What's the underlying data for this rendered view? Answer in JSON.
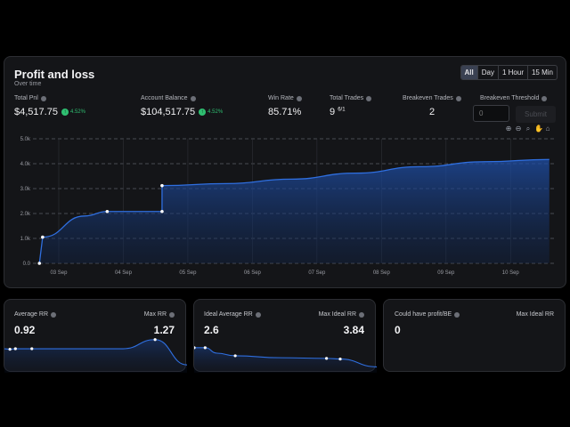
{
  "header": {
    "title": "Profit and loss",
    "subtitle": "Over time"
  },
  "range_buttons": [
    {
      "label": "All",
      "active": true
    },
    {
      "label": "Day",
      "active": false
    },
    {
      "label": "1 Hour",
      "active": false
    },
    {
      "label": "15 Min",
      "active": false
    }
  ],
  "stats": {
    "total_pnl": {
      "label": "Total Pnl",
      "value": "$4,517.75",
      "pct": "4.52%"
    },
    "account_balance": {
      "label": "Account Balance",
      "value": "$104,517.75",
      "pct": "4.52%"
    },
    "win_rate": {
      "label": "Win Rate",
      "value": "85.71%"
    },
    "total_trades": {
      "label": "Total Trades",
      "value": "9",
      "sup": "6/1"
    },
    "breakeven_trades": {
      "label": "Breakeven Trades",
      "value": "2"
    },
    "breakeven_threshold": {
      "label": "Breakeven Threshold",
      "placeholder": "0",
      "submit_label": "Submit"
    }
  },
  "toolbar_icons": [
    "zoom-in-icon",
    "zoom-out-icon",
    "magnify-icon",
    "pan-icon",
    "home-icon"
  ],
  "colors": {
    "accent": "#2f6fe0",
    "positive": "#2fbf71",
    "background": "#141518"
  },
  "chart_data": {
    "type": "area",
    "title": "",
    "xlabel": "",
    "ylabel": "",
    "ylim": [
      0,
      5000
    ],
    "y_ticks": [
      "0.0",
      "1.0k",
      "2.0k",
      "3.0k",
      "4.0k",
      "5.0k"
    ],
    "x_ticks": [
      "03 Sep",
      "04 Sep",
      "05 Sep",
      "06 Sep",
      "07 Sep",
      "08 Sep",
      "09 Sep",
      "10 Sep"
    ],
    "grid": true,
    "series": [
      {
        "x": [
          2.7,
          2.75,
          3.4,
          3.75,
          4.6,
          4.6,
          5.6,
          6.6,
          7.6,
          8.6,
          9.6,
          10.6
        ],
        "y": [
          0,
          1050,
          1900,
          2080,
          2080,
          3120,
          3200,
          3380,
          3620,
          3880,
          4080,
          4170
        ],
        "markers": [
          0,
          1,
          3,
          4,
          5
        ]
      }
    ]
  },
  "mini_cards": [
    {
      "left_label": "Average RR",
      "left_value": "0.92",
      "right_label": "Max RR",
      "right_value": "1.27",
      "chart_data": {
        "type": "line",
        "ylim": [
          0,
          1.5
        ],
        "values": [
          0.92,
          0.9,
          0.92,
          0.92,
          0.92,
          0.92,
          0.92,
          0.92,
          0.92,
          1.27,
          0.3
        ],
        "x": [
          0,
          0.06,
          0.12,
          0.3,
          0.5,
          0.65,
          0.8,
          0.92,
          1.3,
          1.65,
          2.0
        ],
        "markers": [
          1,
          2,
          3,
          9
        ]
      }
    },
    {
      "left_label": "Ideal Average RR",
      "left_value": "2.6",
      "right_label": "Max Ideal RR",
      "right_value": "3.84",
      "chart_data": {
        "type": "line",
        "ylim": [
          0,
          6
        ],
        "values": [
          3.84,
          3.84,
          3.0,
          2.6,
          2.3,
          2.2,
          2.1,
          0.9
        ],
        "x": [
          0,
          0.12,
          0.25,
          0.45,
          0.95,
          1.45,
          1.6,
          2.0
        ],
        "markers": [
          0,
          1,
          3,
          5,
          6
        ]
      }
    },
    {
      "left_label": "Could have profit/BE",
      "left_value": "0",
      "right_label": "Max Ideal RR",
      "right_value": ""
    }
  ]
}
